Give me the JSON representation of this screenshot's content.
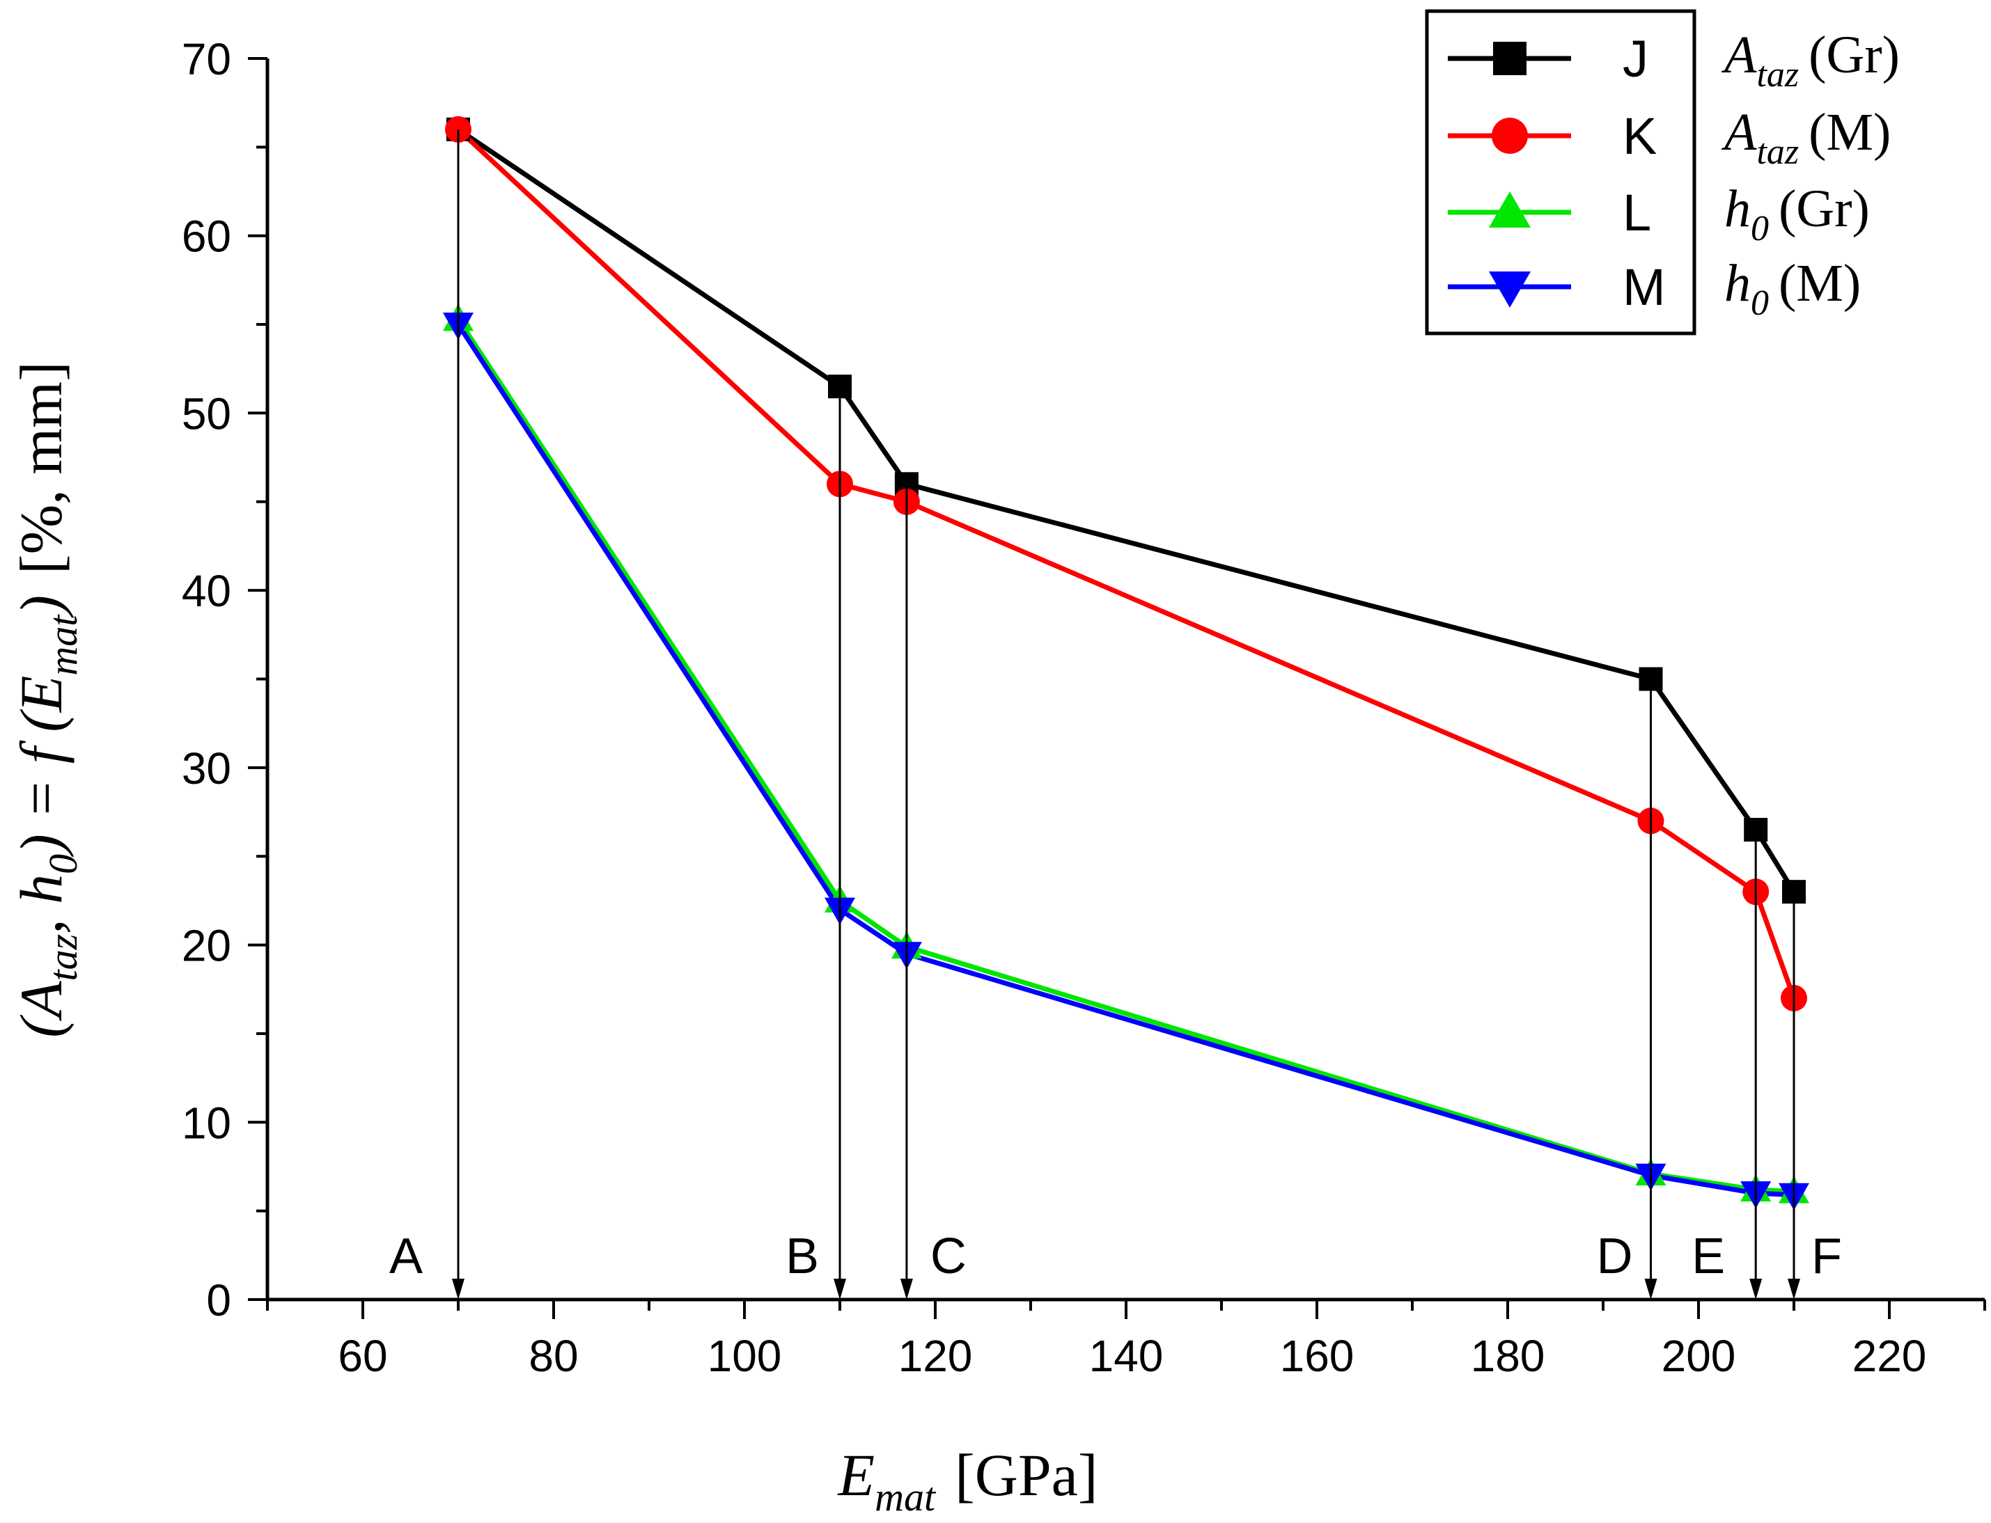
{
  "chart_data": {
    "type": "line",
    "xlabel": {
      "main": "E",
      "sub": "mat",
      "unit": "[GPa]"
    },
    "ylabel": {
      "open": "(A",
      "sub1": "taz",
      "mid": ", h",
      "sub2": "0",
      "close": ") = f (E",
      "sub3": "mat",
      "end": ")",
      "unit": "[%, mm]"
    },
    "xlim": [
      50,
      230
    ],
    "ylim": [
      0,
      70
    ],
    "x_ticks": [
      60,
      80,
      100,
      120,
      140,
      160,
      180,
      200,
      220
    ],
    "y_ticks": [
      0,
      10,
      20,
      30,
      40,
      50,
      60,
      70
    ],
    "x": [
      70,
      110,
      117,
      195,
      206,
      210
    ],
    "series": [
      {
        "name": "J",
        "label_main": "A",
        "label_sub": "taz",
        "label_tail": "(Gr)",
        "color": "#000000",
        "marker": "square",
        "values": [
          66,
          51.5,
          46,
          35,
          26.5,
          23
        ]
      },
      {
        "name": "K",
        "label_main": "A",
        "label_sub": "taz",
        "label_tail": "(M)",
        "color": "#ff0000",
        "marker": "circle",
        "values": [
          66,
          46,
          45,
          27,
          23,
          17
        ]
      },
      {
        "name": "L",
        "label_main": "h",
        "label_sub": "0",
        "label_tail": "(Gr)",
        "color": "#00e600",
        "marker": "triangle-up",
        "values": [
          55.3,
          22.5,
          19.9,
          7.1,
          6.2,
          6.1
        ]
      },
      {
        "name": "M",
        "label_main": "h",
        "label_sub": "0",
        "label_tail": "(M)",
        "color": "#0000ff",
        "marker": "triangle-down",
        "values": [
          55,
          22,
          19.5,
          7,
          6,
          5.9
        ]
      }
    ],
    "annotations": [
      {
        "label": "A",
        "x": 70,
        "from_y": 66
      },
      {
        "label": "B",
        "x": 110,
        "from_y": 51.5
      },
      {
        "label": "C",
        "x": 117,
        "from_y": 46
      },
      {
        "label": "D",
        "x": 195,
        "from_y": 35
      },
      {
        "label": "E",
        "x": 206,
        "from_y": 26.5
      },
      {
        "label": "F",
        "x": 210,
        "from_y": 23
      }
    ],
    "legend_position": "top-right",
    "grid": false
  }
}
